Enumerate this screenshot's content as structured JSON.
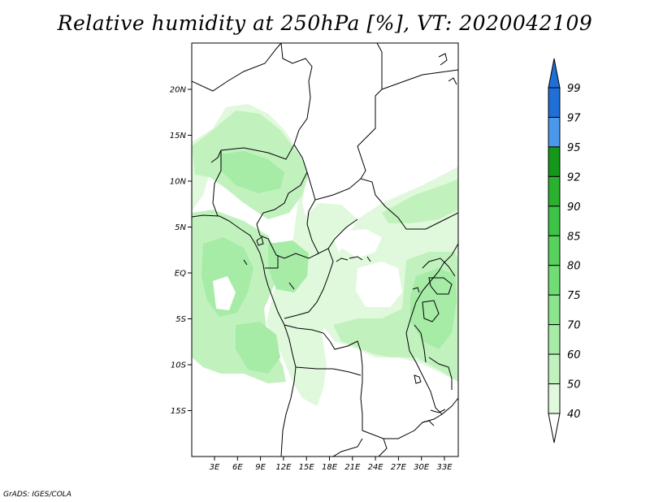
{
  "title": "Relative humidity at 250hPa [%], VT: 2020042109",
  "credit": "GrADS: IGES/COLA",
  "map": {
    "lon_ticks": [
      "3E",
      "6E",
      "9E",
      "12E",
      "15E",
      "18E",
      "21E",
      "24E",
      "27E",
      "30E",
      "33E"
    ],
    "lat_ticks": [
      "20N",
      "15N",
      "10N",
      "5N",
      "EQ",
      "5S",
      "10S",
      "15S"
    ],
    "ocean_color": "#ffffff",
    "border_color": "#000000"
  },
  "colorbar": {
    "levels": [
      "99",
      "97",
      "95",
      "92",
      "90",
      "85",
      "80",
      "75",
      "70",
      "60",
      "50",
      "40"
    ],
    "colors": [
      "#1e6fd8",
      "#4a98ec",
      "#13981a",
      "#2ab22f",
      "#3dc446",
      "#56d25d",
      "#70dd74",
      "#8ae58c",
      "#a6eba6",
      "#c1f2be",
      "#e0f9dc"
    ]
  }
}
